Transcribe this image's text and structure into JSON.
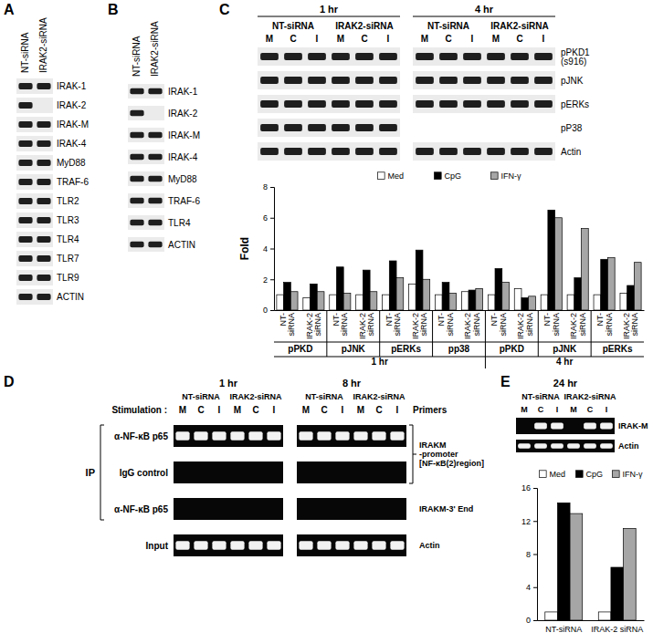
{
  "panels": {
    "A": {
      "label": "A",
      "lanes": [
        "NT-siRNA",
        "IRAK2-siRNA"
      ],
      "rows": [
        {
          "name": "IRAK-1",
          "bands": [
            true,
            true
          ]
        },
        {
          "name": "IRAK-2",
          "bands": [
            true,
            false
          ]
        },
        {
          "name": "IRAK-M",
          "bands": [
            true,
            true
          ]
        },
        {
          "name": "IRAK-4",
          "bands": [
            true,
            true
          ]
        },
        {
          "name": "MyD88",
          "bands": [
            true,
            true
          ]
        },
        {
          "name": "TRAF-6",
          "bands": [
            true,
            true
          ]
        },
        {
          "name": "TLR2",
          "bands": [
            true,
            true
          ]
        },
        {
          "name": "TLR3",
          "bands": [
            true,
            true
          ]
        },
        {
          "name": "TLR4",
          "bands": [
            true,
            true
          ]
        },
        {
          "name": "TLR7",
          "bands": [
            true,
            true
          ]
        },
        {
          "name": "TLR9",
          "bands": [
            true,
            true
          ]
        },
        {
          "name": "ACTIN",
          "bands": [
            true,
            true
          ]
        }
      ]
    },
    "B": {
      "label": "B",
      "lanes": [
        "NT-siRNA",
        "IRAK2-siRNA"
      ],
      "rows": [
        {
          "name": "IRAK-1",
          "bands": [
            true,
            true
          ]
        },
        {
          "name": "IRAK-2",
          "bands": [
            true,
            false
          ]
        },
        {
          "name": "IRAK-M",
          "bands": [
            true,
            true
          ]
        },
        {
          "name": "IRAK-4",
          "bands": [
            true,
            true
          ]
        },
        {
          "name": "MyD88",
          "bands": [
            true,
            true
          ]
        },
        {
          "name": "TRAF-6",
          "bands": [
            true,
            true
          ]
        },
        {
          "name": "TLR4",
          "bands": [
            true,
            true
          ]
        },
        {
          "name": "ACTIN",
          "bands": [
            true,
            true
          ]
        }
      ]
    },
    "C": {
      "label": "C",
      "periods": [
        {
          "label": "1 hr",
          "groups": [
            "NT-siRNA",
            "IRAK2-siRNA"
          ]
        },
        {
          "label": "4 hr",
          "groups": [
            "NT-siRNA",
            "IRAK2-siRNA"
          ]
        }
      ],
      "lanes": [
        "M",
        "C",
        "I"
      ],
      "rows": [
        {
          "name": "pPKD1 (s916)",
          "bands": [
            [
              true,
              true,
              true,
              true,
              true,
              true
            ],
            [
              true,
              true,
              true,
              true,
              true,
              true
            ]
          ]
        },
        {
          "name": "pJNK",
          "bands": [
            [
              true,
              true,
              true,
              true,
              true,
              true
            ],
            [
              true,
              true,
              true,
              true,
              true,
              true
            ]
          ]
        },
        {
          "name": "pERKs",
          "bands": [
            [
              true,
              true,
              true,
              true,
              true,
              true
            ],
            [
              true,
              true,
              true,
              true,
              true,
              true
            ]
          ]
        },
        {
          "name": "pP38",
          "bands": [
            [
              true,
              true,
              true,
              true,
              true,
              true
            ],
            null
          ]
        },
        {
          "name": "Actin",
          "bands": [
            [
              true,
              true,
              true,
              true,
              true,
              true
            ],
            [
              true,
              true,
              true,
              true,
              true,
              true
            ]
          ]
        }
      ]
    },
    "D": {
      "label": "D",
      "stimulation": "Stimulation :",
      "ip": "IP",
      "primers_title": "Primers",
      "periods": [
        {
          "label": "1 hr",
          "groups": [
            "NT-siRNA",
            "IRAK2-siRNA"
          ]
        },
        {
          "label": "8 hr",
          "groups": [
            "NT-siRNA",
            "IRAK2-siRNA"
          ]
        }
      ],
      "lanes": [
        "M",
        "C",
        "I"
      ],
      "rows": [
        {
          "name": "α-NF-κB p65",
          "bands": [
            [
              true,
              true,
              true,
              true,
              true,
              true
            ],
            [
              true,
              true,
              true,
              true,
              true,
              true
            ]
          ],
          "primer": [
            "IRAKM",
            "-promoter",
            "[NF-κB(2)region]"
          ]
        },
        {
          "name": "IgG control",
          "bands": [
            [
              false,
              false,
              false,
              false,
              false,
              false
            ],
            [
              false,
              false,
              false,
              false,
              false,
              false
            ]
          ],
          "primer": null
        },
        {
          "name": "α-NF-κB p65",
          "bands": [
            [
              false,
              false,
              false,
              false,
              false,
              false
            ],
            [
              false,
              false,
              false,
              false,
              false,
              false
            ]
          ],
          "primer": [
            "IRAKM-3' End"
          ]
        },
        {
          "name": "Input",
          "bands": [
            [
              true,
              true,
              true,
              true,
              true,
              true
            ],
            [
              true,
              true,
              true,
              true,
              true,
              true
            ]
          ],
          "primer": [
            "Actin"
          ]
        }
      ]
    },
    "E": {
      "label": "E",
      "period": "24 hr",
      "groups": [
        "NT-siRNA",
        "IRAK2-siRNA"
      ],
      "lanes": [
        "M",
        "C",
        "I"
      ],
      "rows": [
        {
          "name": "IRAK-M",
          "bands": [
            false,
            true,
            true,
            false,
            true,
            true
          ]
        },
        {
          "name": "Actin",
          "bands": [
            true,
            true,
            true,
            true,
            true,
            true
          ]
        }
      ]
    }
  },
  "chart_data": [
    {
      "type": "bar",
      "ylabel": "Fold",
      "legend": "top",
      "categories": [
        "NT-siRNA",
        "IRAK-2 siRNA",
        "NT-siRNA",
        "IRAK-2 siRNA",
        "NT-siRNA",
        "IRAK-2 siRNA",
        "NT-siRNA",
        "IRAK-2 siRNA",
        "NT-siRNA",
        "IRAK-2 siRNA",
        "NT-siRNA",
        "IRAK-2 siRNA",
        "NT-siRNA",
        "IRAK-2 siRNA"
      ],
      "x_groups": [
        {
          "label": "1 hr",
          "groups": [
            "pPKD",
            "pJNK",
            "pERKs",
            "pp38"
          ]
        },
        {
          "label": "4 hr",
          "groups": [
            "pPKD",
            "pJNK",
            "pERKs"
          ]
        }
      ],
      "series": [
        {
          "name": "Med",
          "color": "#ffffff",
          "values": [
            1,
            0.8,
            1,
            1,
            1,
            1.7,
            1,
            1.2,
            1,
            1.4,
            1,
            1,
            1,
            1.1
          ]
        },
        {
          "name": "CpG",
          "color": "#000000",
          "values": [
            1.8,
            1.7,
            2.8,
            2.6,
            3.2,
            3.9,
            1.8,
            1.3,
            2.7,
            0.8,
            6.5,
            2.1,
            3.3,
            1.6
          ]
        },
        {
          "name": "IFN-γ",
          "color": "#a6a6a6",
          "values": [
            1.2,
            1.2,
            1.1,
            1.2,
            2.1,
            2.0,
            1.1,
            1.4,
            1.8,
            0.9,
            6.0,
            5.3,
            3.4,
            3.1
          ]
        }
      ],
      "ylim": [
        0,
        8
      ],
      "yticks": [
        0,
        2,
        4,
        6,
        8
      ]
    },
    {
      "type": "bar",
      "legend": "top",
      "categories": [
        "NT-siRNA",
        "IRAK-2 siRNA"
      ],
      "series": [
        {
          "name": "Med",
          "color": "#ffffff",
          "values": [
            1,
            1
          ]
        },
        {
          "name": "CpG",
          "color": "#000000",
          "values": [
            14.2,
            6.4
          ]
        },
        {
          "name": "IFN-γ",
          "color": "#a6a6a6",
          "values": [
            12.9,
            11.1
          ]
        }
      ],
      "ylim": [
        0,
        16
      ],
      "yticks": [
        0,
        4,
        8,
        12,
        16
      ]
    }
  ]
}
